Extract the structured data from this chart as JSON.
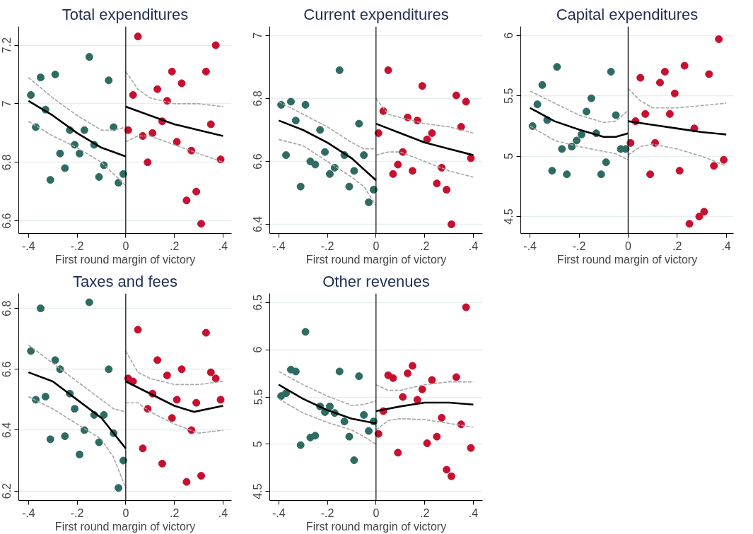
{
  "chart_data": [
    {
      "type": "scatter",
      "title": "Total expenditures",
      "xlabel": "First round margin of victory",
      "xlim": [
        -0.44,
        0.435
      ],
      "ylim": [
        6.557,
        7.264
      ],
      "xticks": [
        {
          "value": -0.4,
          "label": "-.4"
        },
        {
          "value": -0.2,
          "label": "-.2"
        },
        {
          "value": 0,
          "label": "0"
        },
        {
          "value": 0.2,
          "label": ".2"
        },
        {
          "value": 0.4,
          "label": ".4"
        }
      ],
      "yticks": [
        6.6,
        6.8,
        7,
        7.2
      ],
      "grid": "y",
      "ref_lines": [
        {
          "axis": "x",
          "value": 0,
          "color": "#000000"
        }
      ],
      "series": [
        {
          "type": "scatter",
          "marker": "circle",
          "color": "#2e6b62",
          "x": [
            -0.39,
            -0.37,
            -0.35,
            -0.33,
            -0.31,
            -0.29,
            -0.27,
            -0.25,
            -0.23,
            -0.21,
            -0.19,
            -0.17,
            -0.15,
            -0.13,
            -0.11,
            -0.09,
            -0.07,
            -0.05,
            -0.03,
            -0.01
          ],
          "values": [
            7.03,
            6.92,
            7.09,
            6.98,
            6.74,
            7.1,
            6.83,
            6.78,
            6.91,
            6.86,
            6.83,
            6.91,
            7.16,
            6.86,
            6.75,
            6.79,
            7.08,
            6.92,
            6.73,
            6.76
          ]
        },
        {
          "type": "scatter",
          "marker": "circle",
          "color": "#c8102e",
          "x": [
            0.01,
            0.03,
            0.05,
            0.07,
            0.09,
            0.11,
            0.13,
            0.15,
            0.17,
            0.19,
            0.21,
            0.23,
            0.25,
            0.27,
            0.29,
            0.31,
            0.33,
            0.35,
            0.37,
            0.39
          ],
          "values": [
            6.91,
            7.03,
            7.23,
            6.89,
            6.8,
            6.9,
            7.05,
            6.94,
            7.01,
            7.11,
            6.87,
            7.07,
            6.67,
            6.84,
            6.7,
            6.59,
            7.11,
            6.93,
            7.2,
            6.81
          ]
        },
        {
          "type": "line",
          "color": "#a6a6a6",
          "line_style": "dashed",
          "x": [
            -0.4,
            -0.3,
            -0.2,
            -0.1,
            -0.05,
            0
          ],
          "values": [
            7.09,
            7.02,
            6.96,
            6.91,
            6.91,
            6.92
          ]
        },
        {
          "type": "line",
          "color": "#a6a6a6",
          "line_style": "dashed",
          "x": [
            -0.4,
            -0.3,
            -0.2,
            -0.1,
            -0.05,
            0
          ],
          "values": [
            6.94,
            6.89,
            6.85,
            6.8,
            6.76,
            6.72
          ]
        },
        {
          "type": "line",
          "color": "#a6a6a6",
          "line_style": "dashed",
          "x": [
            0,
            0.05,
            0.1,
            0.2,
            0.3,
            0.4
          ],
          "values": [
            7.11,
            7.05,
            7.02,
            7.0,
            7.0,
            6.99
          ]
        },
        {
          "type": "line",
          "color": "#a6a6a6",
          "line_style": "dashed",
          "x": [
            0,
            0.05,
            0.1,
            0.2,
            0.3,
            0.4
          ],
          "values": [
            6.87,
            6.89,
            6.89,
            6.86,
            6.83,
            6.8
          ]
        },
        {
          "type": "line",
          "color": "#000000",
          "line_style": "solid",
          "x": [
            -0.4,
            -0.3,
            -0.2,
            -0.1,
            0
          ],
          "values": [
            7.01,
            6.96,
            6.9,
            6.85,
            6.82
          ]
        },
        {
          "type": "line",
          "color": "#000000",
          "line_style": "solid",
          "x": [
            0,
            0.1,
            0.2,
            0.3,
            0.4
          ],
          "values": [
            6.99,
            6.96,
            6.93,
            6.91,
            6.89
          ]
        }
      ]
    },
    {
      "type": "scatter",
      "title": "Current expenditures",
      "xlabel": "First round margin of victory",
      "xlim": [
        -0.437,
        0.438
      ],
      "ylim": [
        6.371,
        7.029
      ],
      "xticks": [
        {
          "value": -0.4,
          "label": "-.4"
        },
        {
          "value": -0.2,
          "label": "-.2"
        },
        {
          "value": 0,
          "label": "0"
        },
        {
          "value": 0.2,
          "label": ".2"
        },
        {
          "value": 0.4,
          "label": ".4"
        }
      ],
      "yticks": [
        6.4,
        6.6,
        6.8,
        7
      ],
      "grid": "y",
      "ref_lines": [
        {
          "axis": "x",
          "value": 0,
          "color": "#000000"
        }
      ],
      "series": [
        {
          "type": "scatter",
          "marker": "circle",
          "color": "#2e6b62",
          "x": [
            -0.39,
            -0.37,
            -0.35,
            -0.33,
            -0.31,
            -0.29,
            -0.27,
            -0.25,
            -0.23,
            -0.21,
            -0.19,
            -0.17,
            -0.15,
            -0.13,
            -0.11,
            -0.09,
            -0.07,
            -0.05,
            -0.03,
            -0.01
          ],
          "values": [
            6.78,
            6.62,
            6.79,
            6.73,
            6.52,
            6.78,
            6.6,
            6.59,
            6.7,
            6.63,
            6.56,
            6.58,
            6.89,
            6.62,
            6.52,
            6.57,
            6.72,
            6.62,
            6.47,
            6.51
          ]
        },
        {
          "type": "scatter",
          "marker": "circle",
          "color": "#c8102e",
          "x": [
            0.01,
            0.03,
            0.05,
            0.07,
            0.09,
            0.11,
            0.13,
            0.15,
            0.17,
            0.19,
            0.21,
            0.23,
            0.25,
            0.27,
            0.29,
            0.31,
            0.33,
            0.35,
            0.37,
            0.39
          ],
          "values": [
            6.69,
            6.76,
            6.89,
            6.56,
            6.59,
            6.63,
            6.74,
            6.57,
            6.73,
            6.84,
            6.67,
            6.69,
            6.53,
            6.58,
            6.51,
            6.4,
            6.81,
            6.71,
            6.79,
            6.61
          ]
        },
        {
          "type": "line",
          "color": "#a6a6a6",
          "line_style": "dashed",
          "x": [
            -0.4,
            -0.3,
            -0.2,
            -0.1,
            -0.05,
            0
          ],
          "values": [
            6.79,
            6.75,
            6.71,
            6.66,
            6.64,
            6.64
          ]
        },
        {
          "type": "line",
          "color": "#a6a6a6",
          "line_style": "dashed",
          "x": [
            -0.4,
            -0.3,
            -0.2,
            -0.1,
            -0.05,
            0
          ],
          "values": [
            6.67,
            6.65,
            6.6,
            6.55,
            6.52,
            6.46
          ]
        },
        {
          "type": "line",
          "color": "#a6a6a6",
          "line_style": "dashed",
          "x": [
            0,
            0.05,
            0.1,
            0.2,
            0.3,
            0.4
          ],
          "values": [
            6.8,
            6.75,
            6.74,
            6.72,
            6.71,
            6.69
          ]
        },
        {
          "type": "line",
          "color": "#a6a6a6",
          "line_style": "dashed",
          "x": [
            0,
            0.05,
            0.1,
            0.2,
            0.3,
            0.4
          ],
          "values": [
            6.62,
            6.63,
            6.63,
            6.6,
            6.57,
            6.55
          ]
        },
        {
          "type": "line",
          "color": "#000000",
          "line_style": "solid",
          "x": [
            -0.4,
            -0.3,
            -0.2,
            -0.1,
            0
          ],
          "values": [
            6.73,
            6.7,
            6.66,
            6.61,
            6.54
          ]
        },
        {
          "type": "line",
          "color": "#000000",
          "line_style": "solid",
          "x": [
            0,
            0.1,
            0.2,
            0.3,
            0.4
          ],
          "values": [
            6.72,
            6.69,
            6.66,
            6.64,
            6.62
          ]
        }
      ]
    },
    {
      "type": "scatter",
      "title": "Capital expenditures",
      "xlabel": "First round margin of victory",
      "xlim": [
        -0.438,
        0.43
      ],
      "ylim": [
        4.36,
        6.075
      ],
      "xticks": [
        {
          "value": -0.4,
          "label": "-.4"
        },
        {
          "value": -0.2,
          "label": "-.2"
        },
        {
          "value": 0,
          "label": "0"
        },
        {
          "value": 0.2,
          "label": ".2"
        },
        {
          "value": 0.4,
          "label": ".4"
        }
      ],
      "yticks": [
        4.5,
        5,
        5.5,
        6
      ],
      "grid": "y",
      "ref_lines": [
        {
          "axis": "x",
          "value": 0,
          "color": "#000000"
        }
      ],
      "series": [
        {
          "type": "scatter",
          "marker": "circle",
          "color": "#2e6b62",
          "x": [
            -0.39,
            -0.37,
            -0.35,
            -0.33,
            -0.31,
            -0.29,
            -0.27,
            -0.25,
            -0.23,
            -0.21,
            -0.19,
            -0.17,
            -0.15,
            -0.13,
            -0.11,
            -0.09,
            -0.07,
            -0.05,
            -0.03,
            -0.01
          ],
          "values": [
            5.25,
            5.43,
            5.59,
            5.3,
            4.88,
            5.74,
            5.06,
            4.85,
            5.08,
            5.13,
            5.18,
            5.37,
            5.48,
            5.19,
            4.85,
            4.95,
            5.7,
            5.34,
            5.06,
            5.06
          ]
        },
        {
          "type": "scatter",
          "marker": "circle",
          "color": "#c8102e",
          "x": [
            0.01,
            0.03,
            0.05,
            0.07,
            0.09,
            0.11,
            0.13,
            0.15,
            0.17,
            0.19,
            0.21,
            0.23,
            0.25,
            0.27,
            0.29,
            0.31,
            0.33,
            0.35,
            0.37,
            0.39
          ],
          "values": [
            5.11,
            5.29,
            5.65,
            5.35,
            4.85,
            5.11,
            5.61,
            5.7,
            5.35,
            5.52,
            4.88,
            5.75,
            4.44,
            5.23,
            4.5,
            4.54,
            5.68,
            4.92,
            5.97,
            4.97
          ]
        },
        {
          "type": "line",
          "color": "#a6a6a6",
          "line_style": "dashed",
          "x": [
            -0.4,
            -0.3,
            -0.2,
            -0.1,
            -0.05,
            0
          ],
          "values": [
            5.54,
            5.44,
            5.34,
            5.28,
            5.29,
            5.38
          ]
        },
        {
          "type": "line",
          "color": "#a6a6a6",
          "line_style": "dashed",
          "x": [
            -0.4,
            -0.3,
            -0.2,
            -0.1,
            -0.05,
            0
          ],
          "values": [
            5.25,
            5.13,
            5.08,
            5.04,
            5.02,
            4.97
          ]
        },
        {
          "type": "line",
          "color": "#a6a6a6",
          "line_style": "dashed",
          "x": [
            0,
            0.05,
            0.1,
            0.2,
            0.3,
            0.4
          ],
          "values": [
            5.56,
            5.46,
            5.4,
            5.4,
            5.42,
            5.44
          ]
        },
        {
          "type": "line",
          "color": "#a6a6a6",
          "line_style": "dashed",
          "x": [
            0,
            0.05,
            0.1,
            0.2,
            0.3,
            0.4
          ],
          "values": [
            5.01,
            5.08,
            5.1,
            5.06,
            5.0,
            4.92
          ]
        },
        {
          "type": "line",
          "color": "#000000",
          "line_style": "solid",
          "x": [
            -0.4,
            -0.3,
            -0.2,
            -0.1,
            -0.05,
            0
          ],
          "values": [
            5.4,
            5.29,
            5.22,
            5.16,
            5.16,
            5.19
          ]
        },
        {
          "type": "line",
          "color": "#000000",
          "line_style": "solid",
          "x": [
            0,
            0.1,
            0.2,
            0.3,
            0.4
          ],
          "values": [
            5.29,
            5.26,
            5.23,
            5.2,
            5.18
          ]
        }
      ]
    },
    {
      "type": "scatter",
      "title": "Taxes and fees",
      "xlabel": "First round margin of victory",
      "xlim": [
        -0.44,
        0.435
      ],
      "ylim": [
        6.169,
        6.849
      ],
      "xticks": [
        {
          "value": -0.4,
          "label": "-.4"
        },
        {
          "value": -0.2,
          "label": "-.2"
        },
        {
          "value": 0,
          "label": "0"
        },
        {
          "value": 0.2,
          "label": ".2"
        },
        {
          "value": 0.4,
          "label": ".4"
        }
      ],
      "yticks": [
        6.2,
        6.4,
        6.6,
        6.8
      ],
      "grid": "y",
      "ref_lines": [
        {
          "axis": "x",
          "value": 0,
          "color": "#000000"
        }
      ],
      "series": [
        {
          "type": "scatter",
          "marker": "circle",
          "color": "#2e6b62",
          "x": [
            -0.39,
            -0.37,
            -0.35,
            -0.33,
            -0.31,
            -0.29,
            -0.27,
            -0.25,
            -0.23,
            -0.21,
            -0.19,
            -0.17,
            -0.15,
            -0.13,
            -0.11,
            -0.09,
            -0.07,
            -0.05,
            -0.03,
            -0.01
          ],
          "values": [
            6.66,
            6.5,
            6.8,
            6.51,
            6.37,
            6.63,
            6.6,
            6.38,
            6.52,
            6.47,
            6.32,
            6.4,
            6.82,
            6.45,
            6.36,
            6.45,
            6.6,
            6.39,
            6.21,
            6.3
          ]
        },
        {
          "type": "scatter",
          "marker": "circle",
          "color": "#c8102e",
          "x": [
            0.01,
            0.03,
            0.05,
            0.07,
            0.09,
            0.11,
            0.13,
            0.15,
            0.17,
            0.19,
            0.21,
            0.23,
            0.25,
            0.27,
            0.29,
            0.31,
            0.33,
            0.35,
            0.37,
            0.39
          ],
          "values": [
            6.57,
            6.56,
            6.73,
            6.34,
            6.47,
            6.52,
            6.63,
            6.29,
            6.58,
            6.44,
            6.5,
            6.6,
            6.23,
            6.4,
            6.49,
            6.25,
            6.72,
            6.59,
            6.57,
            6.5
          ]
        },
        {
          "type": "line",
          "color": "#a6a6a6",
          "line_style": "dashed",
          "x": [
            -0.4,
            -0.3,
            -0.2,
            -0.1,
            -0.05,
            0
          ],
          "values": [
            6.68,
            6.62,
            6.56,
            6.5,
            6.47,
            6.46
          ]
        },
        {
          "type": "line",
          "color": "#a6a6a6",
          "line_style": "dashed",
          "x": [
            -0.4,
            -0.3,
            -0.2,
            -0.1,
            -0.05,
            0
          ],
          "values": [
            6.51,
            6.47,
            6.42,
            6.37,
            6.31,
            6.21
          ]
        },
        {
          "type": "line",
          "color": "#a6a6a6",
          "line_style": "dashed",
          "x": [
            0,
            0.05,
            0.1,
            0.2,
            0.3,
            0.4
          ],
          "values": [
            6.66,
            6.59,
            6.57,
            6.55,
            6.55,
            6.56
          ]
        },
        {
          "type": "line",
          "color": "#a6a6a6",
          "line_style": "dashed",
          "x": [
            0,
            0.05,
            0.1,
            0.2,
            0.3,
            0.4
          ],
          "values": [
            6.49,
            6.49,
            6.46,
            6.42,
            6.39,
            6.4
          ]
        },
        {
          "type": "line",
          "color": "#000000",
          "line_style": "solid",
          "x": [
            -0.4,
            -0.3,
            -0.2,
            -0.1,
            -0.05,
            0
          ],
          "values": [
            6.59,
            6.56,
            6.5,
            6.44,
            6.39,
            6.34
          ]
        },
        {
          "type": "line",
          "color": "#000000",
          "line_style": "solid",
          "x": [
            0,
            0.1,
            0.2,
            0.28,
            0.4
          ],
          "values": [
            6.56,
            6.52,
            6.48,
            6.46,
            6.48
          ]
        }
      ]
    },
    {
      "type": "scatter",
      "title": "Other revenues",
      "xlabel": "First round margin of victory",
      "xlim": [
        -0.437,
        0.438
      ],
      "ylim": [
        4.404,
        6.596
      ],
      "xticks": [
        {
          "value": -0.4,
          "label": "-.4"
        },
        {
          "value": -0.2,
          "label": "-.2"
        },
        {
          "value": 0,
          "label": "0"
        },
        {
          "value": 0.2,
          "label": ".2"
        },
        {
          "value": 0.4,
          "label": ".4"
        }
      ],
      "yticks": [
        4.5,
        5,
        5.5,
        6,
        6.5
      ],
      "grid": "y",
      "ref_lines": [
        {
          "axis": "x",
          "value": 0,
          "color": "#000000"
        }
      ],
      "series": [
        {
          "type": "scatter",
          "marker": "circle",
          "color": "#2e6b62",
          "x": [
            -0.39,
            -0.37,
            -0.35,
            -0.33,
            -0.31,
            -0.29,
            -0.27,
            -0.25,
            -0.23,
            -0.21,
            -0.19,
            -0.17,
            -0.15,
            -0.13,
            -0.11,
            -0.09,
            -0.07,
            -0.05,
            -0.03,
            -0.01
          ],
          "values": [
            5.51,
            5.54,
            5.79,
            5.77,
            4.99,
            6.19,
            5.07,
            5.09,
            5.4,
            5.34,
            5.4,
            5.33,
            5.77,
            5.24,
            5.08,
            4.83,
            5.72,
            5.31,
            5.14,
            5.24
          ]
        },
        {
          "type": "scatter",
          "marker": "circle",
          "color": "#c8102e",
          "x": [
            0.01,
            0.03,
            0.05,
            0.07,
            0.09,
            0.11,
            0.13,
            0.15,
            0.17,
            0.19,
            0.21,
            0.23,
            0.25,
            0.27,
            0.29,
            0.31,
            0.33,
            0.35,
            0.37,
            0.39
          ],
          "values": [
            5.11,
            5.35,
            5.73,
            5.7,
            4.91,
            5.5,
            5.75,
            5.83,
            5.47,
            5.58,
            5.01,
            5.68,
            5.08,
            5.28,
            4.73,
            4.66,
            5.71,
            5.21,
            6.45,
            4.96
          ]
        },
        {
          "type": "line",
          "color": "#a6a6a6",
          "line_style": "dashed",
          "x": [
            -0.4,
            -0.3,
            -0.2,
            -0.1,
            -0.05,
            0
          ],
          "values": [
            5.77,
            5.63,
            5.51,
            5.41,
            5.42,
            5.46
          ]
        },
        {
          "type": "line",
          "color": "#a6a6a6",
          "line_style": "dashed",
          "x": [
            -0.4,
            -0.3,
            -0.2,
            -0.1,
            -0.05,
            0
          ],
          "values": [
            5.48,
            5.33,
            5.23,
            5.15,
            5.08,
            5.0
          ]
        },
        {
          "type": "line",
          "color": "#a6a6a6",
          "line_style": "dashed",
          "x": [
            0,
            0.05,
            0.1,
            0.2,
            0.3,
            0.4
          ],
          "values": [
            5.63,
            5.57,
            5.57,
            5.63,
            5.66,
            5.66
          ]
        },
        {
          "type": "line",
          "color": "#a6a6a6",
          "line_style": "dashed",
          "x": [
            0,
            0.05,
            0.1,
            0.2,
            0.3,
            0.4
          ],
          "values": [
            5.15,
            5.25,
            5.27,
            5.26,
            5.22,
            5.18
          ]
        },
        {
          "type": "line",
          "color": "#000000",
          "line_style": "solid",
          "x": [
            -0.4,
            -0.3,
            -0.2,
            -0.1,
            0
          ],
          "values": [
            5.63,
            5.48,
            5.36,
            5.27,
            5.22
          ]
        },
        {
          "type": "line",
          "color": "#000000",
          "line_style": "solid",
          "x": [
            0,
            0.1,
            0.2,
            0.3,
            0.4
          ],
          "values": [
            5.35,
            5.4,
            5.44,
            5.44,
            5.42
          ]
        }
      ]
    }
  ]
}
